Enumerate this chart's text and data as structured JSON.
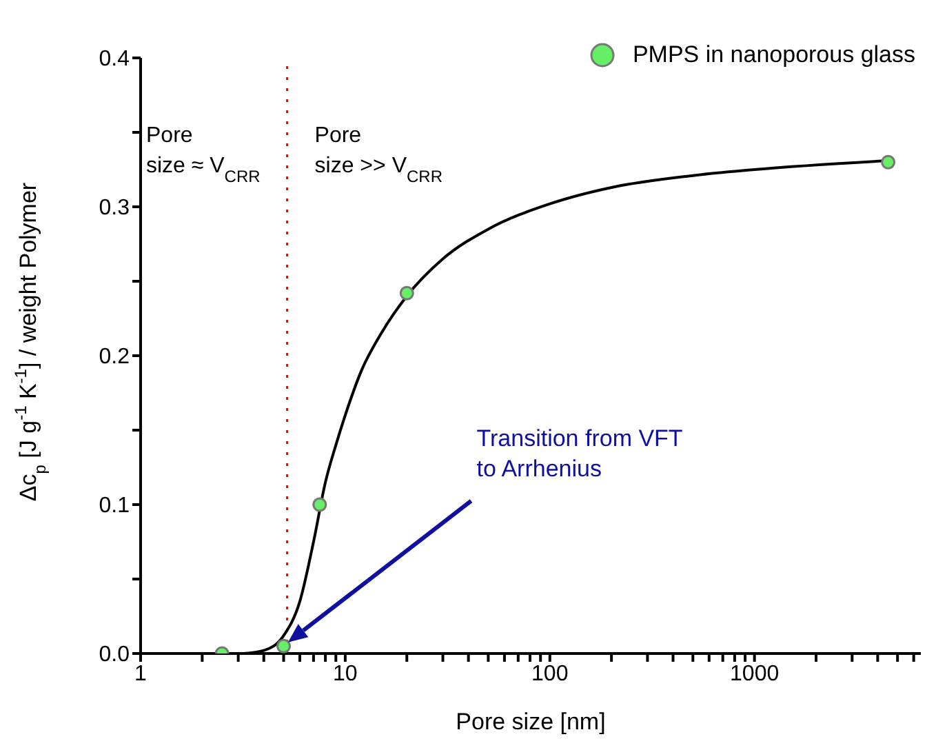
{
  "chart_data": {
    "type": "scatter",
    "xlabel": "Pore size [nm]",
    "ylabel": "Δc$_{p}$ [J g$^{-1}$ K$^{-1}$] / weight Polymer",
    "log": "x",
    "legend": "top right",
    "grid": false,
    "xlim": [
      1,
      6500
    ],
    "ylim": [
      0,
      0.4
    ],
    "xticks": [
      1,
      {
        "value": 2,
        "label": null
      },
      {
        "value": 3,
        "label": null
      },
      {
        "value": 4,
        "label": null
      },
      {
        "value": 5,
        "label": null
      },
      {
        "value": 6,
        "label": null
      },
      {
        "value": 7,
        "label": null
      },
      {
        "value": 8,
        "label": null
      },
      {
        "value": 9,
        "label": null
      },
      10,
      {
        "value": 20,
        "label": null
      },
      {
        "value": 30,
        "label": null
      },
      {
        "value": 40,
        "label": null
      },
      {
        "value": 50,
        "label": null
      },
      {
        "value": 60,
        "label": null
      },
      {
        "value": 70,
        "label": null
      },
      {
        "value": 80,
        "label": null
      },
      {
        "value": 90,
        "label": null
      },
      100,
      {
        "value": 200,
        "label": null
      },
      {
        "value": 300,
        "label": null
      },
      {
        "value": 400,
        "label": null
      },
      {
        "value": 500,
        "label": null
      },
      {
        "value": 600,
        "label": null
      },
      {
        "value": 700,
        "label": null
      },
      {
        "value": 800,
        "label": null
      },
      {
        "value": 900,
        "label": null
      },
      1000,
      {
        "value": 2000,
        "label": null
      },
      {
        "value": 3000,
        "label": null
      },
      {
        "value": 4000,
        "label": null
      },
      {
        "value": 5000,
        "label": null
      },
      {
        "value": 6000,
        "label": null
      }
    ],
    "yticks": [
      {
        "value": 0,
        "label": "0.0"
      },
      {
        "value": 0.05,
        "label": null
      },
      {
        "value": 0.1,
        "label": "0.1"
      },
      {
        "value": 0.15,
        "label": null
      },
      {
        "value": 0.2,
        "label": "0.2"
      },
      {
        "value": 0.25,
        "label": null
      },
      {
        "value": 0.3,
        "label": "0.3"
      },
      {
        "value": 0.35,
        "label": null
      },
      {
        "value": 0.4,
        "label": "0.4"
      }
    ],
    "series": [
      {
        "name": "PMPS in nanoporous glass",
        "marker": "circle",
        "color": "#66ee66",
        "x": [
          2.5,
          5,
          7.5,
          20,
          4500
        ],
        "values": [
          0,
          0.005,
          0.1,
          0.242,
          0.33
        ]
      },
      {
        "type": "line",
        "marker": "none",
        "line_style": "solid",
        "color": "#000000",
        "x": [
          3.2,
          4,
          5,
          6,
          7,
          8,
          9,
          10,
          12,
          15,
          20,
          30,
          50,
          100,
          200,
          500,
          1000,
          4500
        ],
        "values": [
          0,
          0.002,
          0.012,
          0.035,
          0.075,
          0.115,
          0.14,
          0.16,
          0.19,
          0.215,
          0.24,
          0.265,
          0.285,
          0.302,
          0.313,
          0.321,
          0.325,
          0.331
        ]
      }
    ],
    "ref_lines": [
      {
        "axis": "x",
        "value": 5.2,
        "color": "#ff0000",
        "line_style": "dotted"
      }
    ],
    "annotations": [
      "Pore size ≈ V$_{CRR}$",
      "Pore size >> V$_{CRR}$",
      "Transition from VFT to Arrhenius"
    ]
  }
}
